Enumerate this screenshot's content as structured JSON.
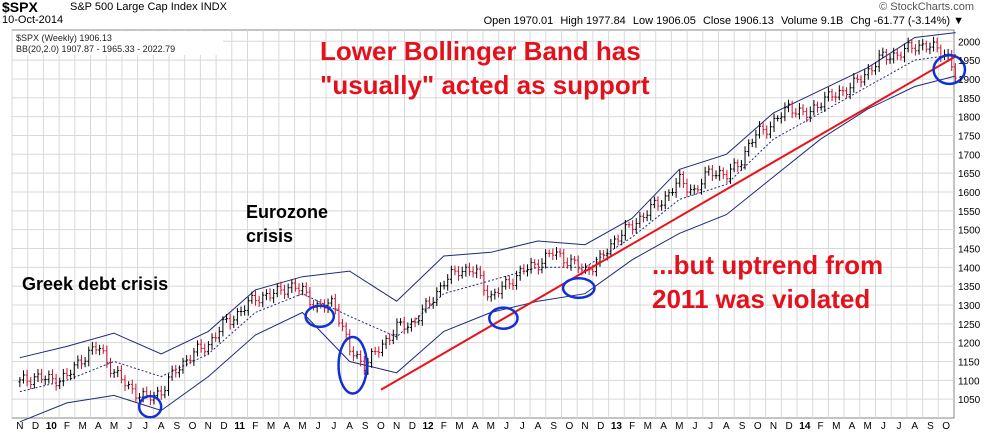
{
  "header": {
    "symbol": "$SPX",
    "description": "S&P 500 Large Cap Index  INDX",
    "date": "10-Oct-2014",
    "brand": "© StockCharts.com",
    "open": "Open 1970.01",
    "high": "High 1977.84",
    "low": "Low 1906.05",
    "close": "Close 1906.13",
    "volume": "Volume 9.1B",
    "chg": "Chg -61.77 (-3.14%) ▼"
  },
  "legend": {
    "price": "$SPX (Weekly) 1906.13",
    "bb": "BB(20,2.0) 1907.87 - 1965.33 - 2022.79"
  },
  "colors": {
    "up": "#000000",
    "down": "#c8102e",
    "band": "#1f2a7a",
    "trendline": "#e8141c",
    "circle": "#1030d8",
    "grid": "#d8d8d8"
  },
  "annotations": {
    "bb_line1": "Lower Bollinger Band has",
    "bb_line2": "\"usually\" acted as support",
    "uptrend_line1": "...but uptrend from",
    "uptrend_line2": "2011 was violated",
    "greek": "Greek debt crisis",
    "euro_line1": "Eurozone",
    "euro_line2": "crisis"
  },
  "chart_data": {
    "type": "line",
    "title": "$SPX S&P 500 Large Cap Index INDX",
    "ylim": [
      1000,
      2030
    ],
    "yticks": [
      1050,
      1100,
      1150,
      1200,
      1250,
      1300,
      1350,
      1400,
      1450,
      1500,
      1550,
      1600,
      1650,
      1700,
      1750,
      1800,
      1850,
      1900,
      1950,
      2000
    ],
    "month_labels": [
      "N",
      "D",
      "10",
      "F",
      "M",
      "A",
      "M",
      "J",
      "J",
      "A",
      "S",
      "O",
      "N",
      "D",
      "11",
      "F",
      "M",
      "A",
      "M",
      "J",
      "J",
      "A",
      "S",
      "O",
      "N",
      "D",
      "12",
      "F",
      "M",
      "A",
      "M",
      "J",
      "J",
      "A",
      "S",
      "O",
      "N",
      "D",
      "13",
      "F",
      "M",
      "A",
      "M",
      "J",
      "J",
      "A",
      "S",
      "O",
      "N",
      "D",
      "14",
      "F",
      "M",
      "A",
      "M",
      "J",
      "J",
      "A",
      "S",
      "O"
    ],
    "year_labels": [
      "10",
      "11",
      "12",
      "13",
      "14"
    ],
    "series": [
      {
        "name": "$SPX (Weekly)",
        "x_month_index": [
          0,
          1,
          2,
          3,
          4,
          5,
          6,
          7,
          8,
          9,
          10,
          11,
          12,
          13,
          14,
          15,
          16,
          17,
          18,
          19,
          20,
          21,
          22,
          23,
          24,
          25,
          26,
          27,
          28,
          29,
          30,
          31,
          32,
          33,
          34,
          35,
          36,
          37,
          38,
          39,
          40,
          41,
          42,
          43,
          44,
          45,
          46,
          47,
          48,
          49,
          50,
          51,
          52,
          53,
          54,
          55,
          56,
          57,
          58,
          59,
          59.6
        ],
        "values": [
          1095,
          1110,
          1100,
          1110,
          1160,
          1190,
          1120,
          1080,
          1050,
          1070,
          1130,
          1170,
          1195,
          1250,
          1280,
          1320,
          1325,
          1350,
          1340,
          1290,
          1310,
          1180,
          1140,
          1190,
          1240,
          1250,
          1300,
          1360,
          1395,
          1390,
          1320,
          1355,
          1390,
          1410,
          1440,
          1415,
          1390,
          1420,
          1480,
          1510,
          1550,
          1580,
          1630,
          1600,
          1660,
          1640,
          1690,
          1760,
          1780,
          1830,
          1800,
          1840,
          1860,
          1880,
          1920,
          1960,
          1965,
          1990,
          1985,
          1970,
          1906
        ]
      },
      {
        "name": "BB upper",
        "x_month_index": [
          0,
          3,
          6,
          9,
          12,
          15,
          18,
          21,
          24,
          27,
          30,
          33,
          36,
          39,
          42,
          45,
          48,
          51,
          54,
          57,
          59.6
        ],
        "values": [
          1160,
          1190,
          1225,
          1170,
          1230,
          1340,
          1375,
          1390,
          1310,
          1430,
          1440,
          1470,
          1460,
          1530,
          1660,
          1700,
          1810,
          1870,
          1930,
          2010,
          2023
        ]
      },
      {
        "name": "BB middle",
        "x_month_index": [
          0,
          3,
          6,
          9,
          12,
          15,
          18,
          21,
          24,
          27,
          30,
          33,
          36,
          39,
          42,
          45,
          48,
          51,
          54,
          57,
          59.6
        ],
        "values": [
          1070,
          1100,
          1150,
          1110,
          1170,
          1280,
          1330,
          1270,
          1215,
          1330,
          1365,
          1400,
          1400,
          1480,
          1580,
          1620,
          1740,
          1810,
          1880,
          1950,
          1965
        ]
      },
      {
        "name": "BB lower",
        "x_month_index": [
          0,
          3,
          6,
          9,
          12,
          15,
          18,
          21,
          24,
          27,
          30,
          33,
          36,
          39,
          42,
          45,
          48,
          51,
          54,
          57,
          59.6
        ],
        "values": [
          990,
          1040,
          1060,
          1020,
          1110,
          1220,
          1280,
          1150,
          1120,
          1230,
          1280,
          1310,
          1330,
          1420,
          1490,
          1540,
          1640,
          1740,
          1820,
          1880,
          1908
        ]
      },
      {
        "name": "Uptrend from 2011",
        "x_month_index": [
          23,
          59.6
        ],
        "values": [
          1075,
          1960
        ]
      }
    ],
    "circles": [
      {
        "x_month_index": 8.3,
        "y": 1030,
        "rx_months": 0.7,
        "ry_value": 28
      },
      {
        "x_month_index": 19.1,
        "y": 1270,
        "rx_months": 0.9,
        "ry_value": 28
      },
      {
        "x_month_index": 21.2,
        "y": 1140,
        "rx_months": 0.9,
        "ry_value": 75
      },
      {
        "x_month_index": 30.8,
        "y": 1265,
        "rx_months": 0.9,
        "ry_value": 28
      },
      {
        "x_month_index": 35.6,
        "y": 1345,
        "rx_months": 1.0,
        "ry_value": 26
      },
      {
        "x_month_index": 59.2,
        "y": 1925,
        "rx_months": 1.0,
        "ry_value": 38
      }
    ]
  }
}
